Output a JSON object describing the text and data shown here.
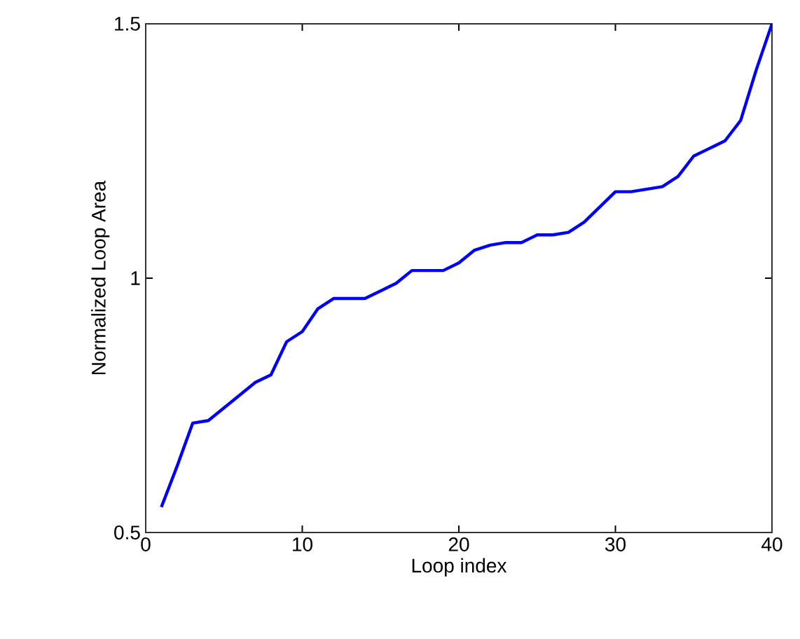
{
  "chart_data": {
    "type": "line",
    "xlabel": "Loop index",
    "ylabel": "Normalized Loop Area",
    "x": [
      1,
      2,
      3,
      4,
      5,
      6,
      7,
      8,
      9,
      10,
      11,
      12,
      13,
      14,
      15,
      16,
      17,
      18,
      19,
      20,
      21,
      22,
      23,
      24,
      25,
      26,
      27,
      28,
      29,
      30,
      31,
      32,
      33,
      34,
      35,
      36,
      37,
      38,
      39,
      40
    ],
    "series": [
      {
        "color": "#0000ff",
        "values": [
          0.55,
          0.63,
          0.715,
          0.72,
          0.745,
          0.77,
          0.795,
          0.81,
          0.875,
          0.895,
          0.94,
          0.96,
          0.96,
          0.96,
          0.975,
          0.99,
          1.015,
          1.015,
          1.015,
          1.03,
          1.055,
          1.065,
          1.07,
          1.07,
          1.085,
          1.085,
          1.09,
          1.11,
          1.14,
          1.17,
          1.17,
          1.175,
          1.18,
          1.2,
          1.24,
          1.255,
          1.27,
          1.31,
          1.41,
          1.5
        ]
      }
    ],
    "xlim": [
      0,
      40
    ],
    "ylim": [
      0.5,
      1.5
    ],
    "xticks": [
      0,
      10,
      20,
      30,
      40
    ],
    "yticks": [
      0.5,
      1,
      1.5
    ],
    "grid": false,
    "marker": "none",
    "line_style": "solid"
  }
}
